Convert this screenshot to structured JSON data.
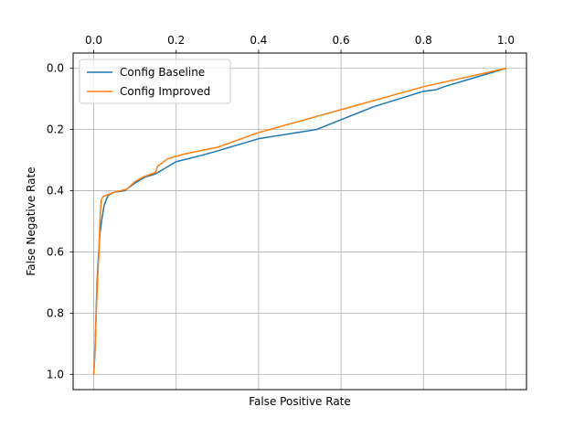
{
  "chart_data": {
    "type": "line",
    "title": "",
    "xlabel": "False Positive Rate",
    "ylabel": "False Negative Rate",
    "x_axis_position": "top",
    "y_axis_inverted": true,
    "xlim": [
      -0.05,
      1.05
    ],
    "ylim": [
      1.05,
      -0.05
    ],
    "xticks": [
      0.0,
      0.2,
      0.4,
      0.6,
      0.8,
      1.0
    ],
    "xtick_labels": [
      "0.0",
      "0.2",
      "0.4",
      "0.6",
      "0.8",
      "1.0"
    ],
    "yticks": [
      0.0,
      0.2,
      0.4,
      0.6,
      0.8,
      1.0
    ],
    "ytick_labels": [
      "0.0",
      "0.2",
      "0.4",
      "0.6",
      "0.8",
      "1.0"
    ],
    "grid": true,
    "legend_position": "upper-left",
    "series": [
      {
        "name": "Config Baseline",
        "color": "#1f77b4",
        "points": [
          [
            0.0,
            1.0
          ],
          [
            0.003,
            0.93
          ],
          [
            0.005,
            0.83
          ],
          [
            0.008,
            0.7
          ],
          [
            0.012,
            0.6
          ],
          [
            0.015,
            0.54
          ],
          [
            0.02,
            0.49
          ],
          [
            0.025,
            0.45
          ],
          [
            0.03,
            0.43
          ],
          [
            0.035,
            0.415
          ],
          [
            0.05,
            0.405
          ],
          [
            0.075,
            0.4
          ],
          [
            0.1,
            0.375
          ],
          [
            0.125,
            0.355
          ],
          [
            0.15,
            0.345
          ],
          [
            0.2,
            0.305
          ],
          [
            0.26,
            0.285
          ],
          [
            0.3,
            0.27
          ],
          [
            0.4,
            0.23
          ],
          [
            0.54,
            0.2
          ],
          [
            0.68,
            0.125
          ],
          [
            0.8,
            0.075
          ],
          [
            0.83,
            0.07
          ],
          [
            0.85,
            0.06
          ],
          [
            1.0,
            0.0
          ]
        ]
      },
      {
        "name": "Config Improved",
        "color": "#ff7f0e",
        "points": [
          [
            0.0,
            1.0
          ],
          [
            0.003,
            0.92
          ],
          [
            0.006,
            0.8
          ],
          [
            0.009,
            0.7
          ],
          [
            0.012,
            0.62
          ],
          [
            0.015,
            0.5
          ],
          [
            0.018,
            0.43
          ],
          [
            0.022,
            0.42
          ],
          [
            0.03,
            0.415
          ],
          [
            0.05,
            0.405
          ],
          [
            0.08,
            0.395
          ],
          [
            0.1,
            0.37
          ],
          [
            0.12,
            0.355
          ],
          [
            0.15,
            0.34
          ],
          [
            0.155,
            0.32
          ],
          [
            0.18,
            0.295
          ],
          [
            0.22,
            0.28
          ],
          [
            0.3,
            0.258
          ],
          [
            0.4,
            0.21
          ],
          [
            0.6,
            0.135
          ],
          [
            0.8,
            0.06
          ],
          [
            1.0,
            0.0
          ]
        ]
      }
    ]
  }
}
